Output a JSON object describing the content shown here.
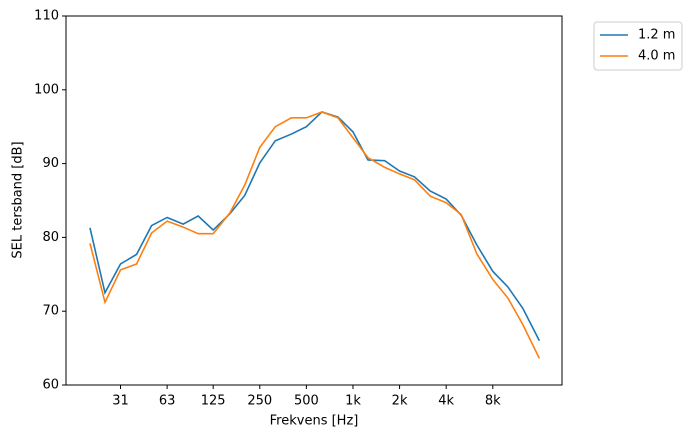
{
  "chart_data": {
    "type": "line",
    "xlabel": "Frekvens [Hz]",
    "ylabel": "SEL tersband [dB]",
    "x": [
      20,
      25,
      31.5,
      40,
      50,
      63,
      80,
      100,
      125,
      160,
      200,
      250,
      315,
      400,
      500,
      630,
      800,
      1000,
      1250,
      1600,
      2000,
      2500,
      3150,
      4000,
      5000,
      6300,
      8000,
      10000,
      12500,
      16000
    ],
    "series": [
      {
        "name": "1.2 m",
        "color": "#1f77b4",
        "values": [
          81.3,
          72.5,
          76.4,
          77.7,
          81.6,
          82.7,
          81.8,
          82.9,
          81.0,
          83.2,
          85.7,
          90.1,
          93.1,
          94.0,
          95.0,
          97.0,
          96.3,
          94.3,
          90.5,
          90.4,
          89.0,
          88.2,
          86.3,
          85.2,
          83.0,
          79.0,
          75.4,
          73.3,
          70.4,
          66.0
        ]
      },
      {
        "name": "4.0 m",
        "color": "#ff7f0e",
        "values": [
          79.2,
          71.2,
          75.6,
          76.4,
          80.6,
          82.2,
          81.4,
          80.5,
          80.5,
          83.3,
          87.1,
          92.2,
          95.0,
          96.2,
          96.2,
          97.0,
          96.2,
          93.5,
          90.8,
          89.5,
          88.6,
          87.8,
          85.6,
          84.7,
          83.1,
          77.8,
          74.3,
          71.8,
          68.2,
          63.6
        ]
      }
    ],
    "xscale": "log",
    "xlim": [
      14,
      22400
    ],
    "xticks": [
      {
        "value": 31.5,
        "label": "31"
      },
      63,
      125,
      250,
      500,
      {
        "value": 1000,
        "label": "1k"
      },
      {
        "value": 2000,
        "label": "2k"
      },
      {
        "value": 4000,
        "label": "4k"
      },
      {
        "value": 8000,
        "label": "8k"
      }
    ],
    "ylim": [
      60,
      110
    ],
    "yticks": [
      60,
      70,
      80,
      90,
      100,
      110
    ],
    "grid": false,
    "legend": "outside-upper-right"
  }
}
